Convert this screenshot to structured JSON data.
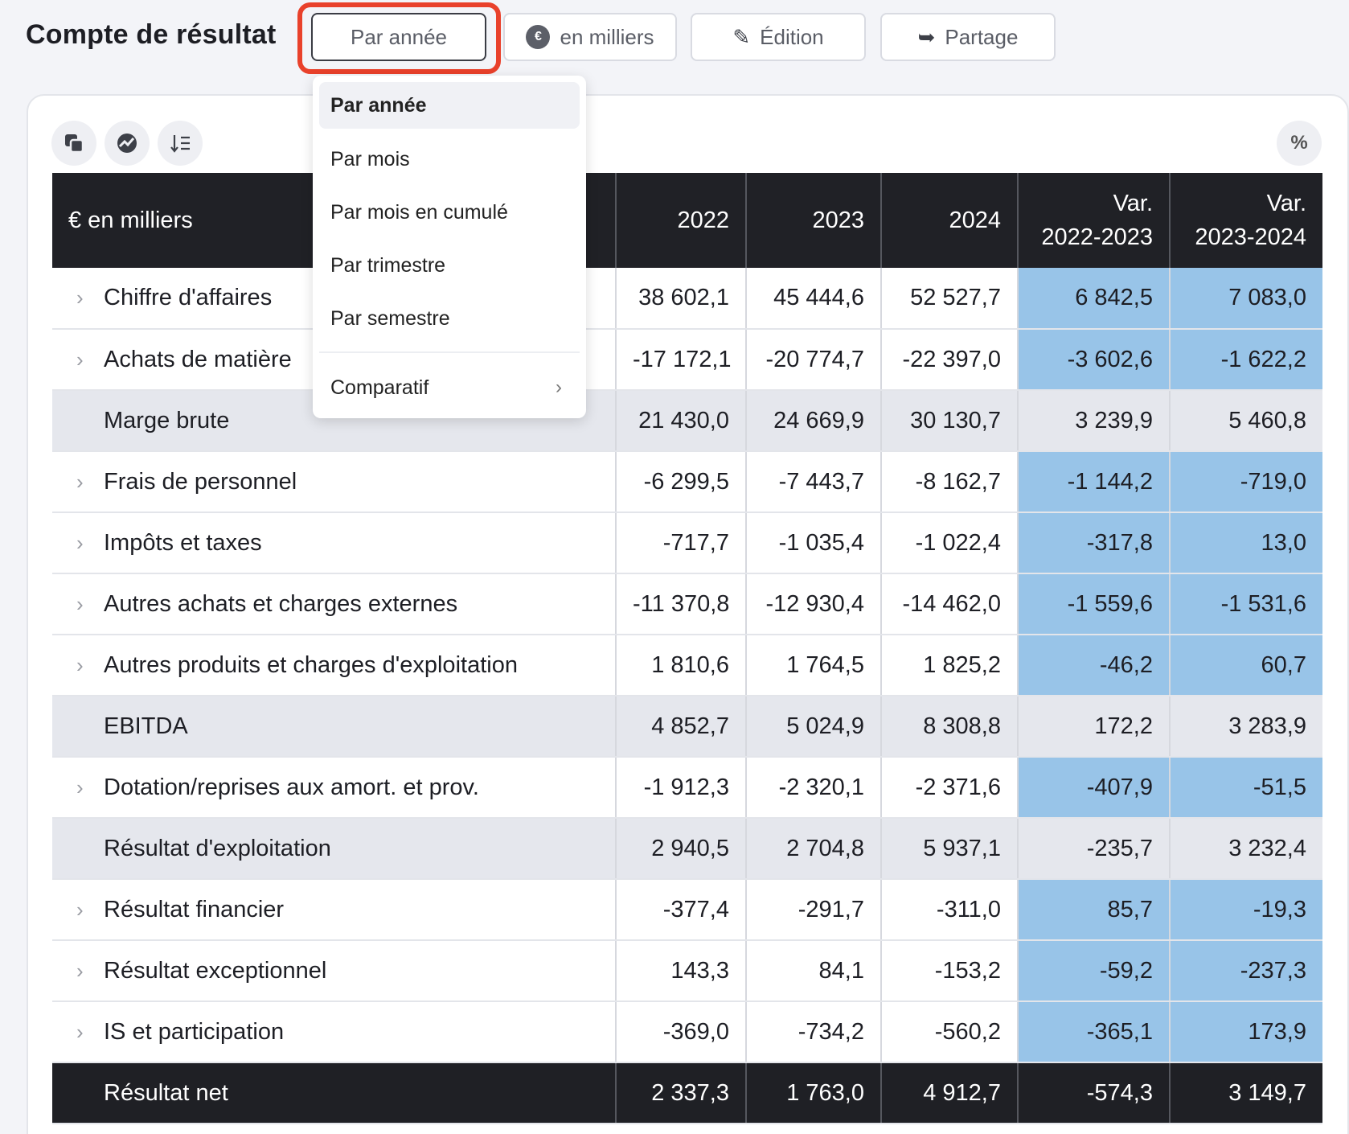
{
  "page_title": "Compte de résultat",
  "toolbar": {
    "period": "Par année",
    "unit": "en milliers",
    "unit_icon": "€",
    "edit": "Édition",
    "share": "Partage"
  },
  "percent_label": "%",
  "period_menu": {
    "items": [
      "Par année",
      "Par mois",
      "Par mois en cumulé",
      "Par trimestre",
      "Par semestre"
    ],
    "selected": "Par année",
    "comparative": "Comparatif"
  },
  "table": {
    "headers": {
      "label": "€ en milliers",
      "y2022": "2022",
      "y2023": "2023",
      "y2024": "2024",
      "var1_l1": "Var.",
      "var1_l2": "2022-2023",
      "var2_l1": "Var.",
      "var2_l2": "2023-2024"
    },
    "rows": [
      {
        "label": "Chiffre d'affaires",
        "values": [
          "38 602,1",
          "45 444,6",
          "52 527,7",
          "6 842,5",
          "7 083,0"
        ]
      },
      {
        "label": "Achats de matière",
        "values": [
          "-17 172,1",
          "-20 774,7",
          "-22 397,0",
          "-3 602,6",
          "-1 622,2"
        ]
      },
      {
        "label": "Marge brute",
        "values": [
          "21 430,0",
          "24 669,9",
          "30 130,7",
          "3 239,9",
          "5 460,8"
        ]
      },
      {
        "label": "Frais de personnel",
        "values": [
          "-6 299,5",
          "-7 443,7",
          "-8 162,7",
          "-1 144,2",
          "-719,0"
        ]
      },
      {
        "label": "Impôts et taxes",
        "values": [
          "-717,7",
          "-1 035,4",
          "-1 022,4",
          "-317,8",
          "13,0"
        ]
      },
      {
        "label": "Autres achats et charges externes",
        "values": [
          "-11 370,8",
          "-12 930,4",
          "-14 462,0",
          "-1 559,6",
          "-1 531,6"
        ]
      },
      {
        "label": "Autres produits et charges d'exploitation",
        "values": [
          "1 810,6",
          "1 764,5",
          "1 825,2",
          "-46,2",
          "60,7"
        ]
      },
      {
        "label": "EBITDA",
        "values": [
          "4 852,7",
          "5 024,9",
          "8 308,8",
          "172,2",
          "3 283,9"
        ]
      },
      {
        "label": "Dotation/reprises aux amort. et prov.",
        "values": [
          "-1 912,3",
          "-2 320,1",
          "-2 371,6",
          "-407,9",
          "-51,5"
        ]
      },
      {
        "label": "Résultat d'exploitation",
        "values": [
          "2 940,5",
          "2 704,8",
          "5 937,1",
          "-235,7",
          "3 232,4"
        ]
      },
      {
        "label": "Résultat financier",
        "values": [
          "-377,4",
          "-291,7",
          "-311,0",
          "85,7",
          "-19,3"
        ]
      },
      {
        "label": "Résultat exceptionnel",
        "values": [
          "143,3",
          "84,1",
          "-153,2",
          "-59,2",
          "-237,3"
        ]
      },
      {
        "label": "IS et participation",
        "values": [
          "-369,0",
          "-734,2",
          "-560,2",
          "-365,1",
          "173,9"
        ]
      },
      {
        "label": "Résultat net",
        "values": [
          "2 337,3",
          "1 763,0",
          "4 912,7",
          "-574,3",
          "3 149,7"
        ]
      }
    ]
  }
}
